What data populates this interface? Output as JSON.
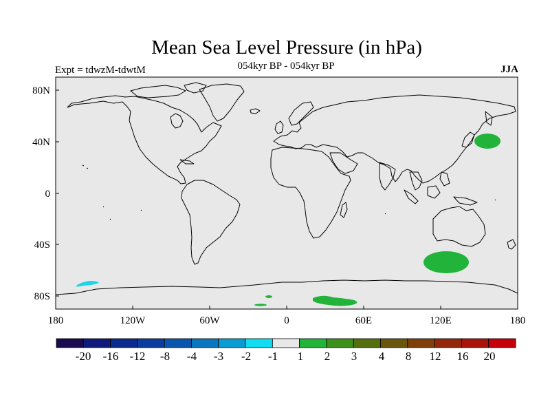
{
  "title": "Mean Sea Level Pressure (in hPa)",
  "subtitle": "054kyr BP - 054kyr BP",
  "experiment": "Expt = tdwzM-tdwtM",
  "season": "JJA",
  "colors": {
    "background": "#e8e8e8",
    "coast": "#000000",
    "green": "#21b33a",
    "cyan": "#1fd4e6"
  },
  "x_ticks": [
    "180",
    "120W",
    "60W",
    "0",
    "60E",
    "120E",
    "180"
  ],
  "y_ticks": [
    "80N",
    "40N",
    "0",
    "40S",
    "80S"
  ],
  "colorbar": {
    "colors": [
      "#1a0a4f",
      "#0f1a7a",
      "#0a2a8e",
      "#0b3c9e",
      "#0b55ad",
      "#0b77bf",
      "#0a9bd3",
      "#12ddf0",
      "#e8e8e8",
      "#21b33a",
      "#3d8f1c",
      "#556e10",
      "#6a560d",
      "#7e3f0b",
      "#92270a",
      "#a91309",
      "#c40008"
    ],
    "labels": [
      "-20",
      "-16",
      "-12",
      "-8",
      "-4",
      "-3",
      "-2",
      "-1",
      "1",
      "2",
      "3",
      "4",
      "8",
      "12",
      "16",
      "20"
    ]
  }
}
